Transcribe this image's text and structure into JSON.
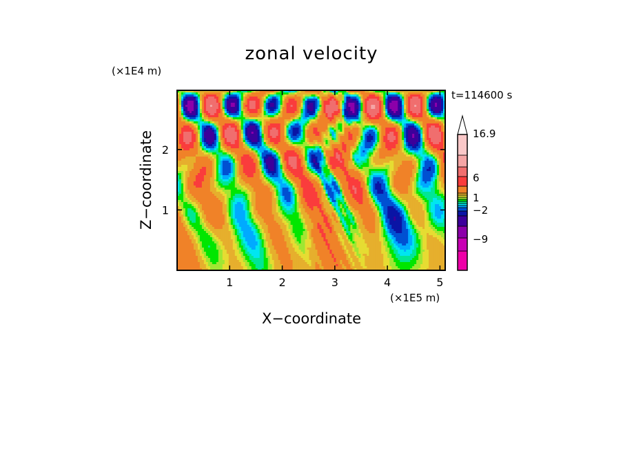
{
  "chart_data": {
    "type": "heatmap",
    "title": "zonal velocity",
    "xlabel": "X−coordinate",
    "ylabel": "Z−coordinate",
    "x_unit": "(×1E5 m)",
    "y_unit": "(×1E4 m)",
    "time_label": "t=114600 s",
    "xlim": [
      0.0,
      5.1
    ],
    "ylim": [
      0.0,
      2.98
    ],
    "x_ticks": [
      1,
      2,
      3,
      4,
      5
    ],
    "y_ticks": [
      1,
      2
    ],
    "colorbar": {
      "extend_max": true,
      "levels_bottom_to_top": [
        -15,
        -12,
        -9,
        -6,
        -4,
        -3,
        -2,
        -1.5,
        -1,
        -0.5,
        0,
        0.5,
        1,
        2,
        4,
        6,
        9,
        12,
        16.9
      ],
      "colors_bottom_to_top": [
        "#ee00a8",
        "#c800b4",
        "#8c00aa",
        "#3c009b",
        "#0a14a5",
        "#0050d2",
        "#00aaff",
        "#00e6f0",
        "#00e696",
        "#00e600",
        "#a0e632",
        "#e6dc32",
        "#e6af2d",
        "#f08228",
        "#fa3c3c",
        "#f06e6e",
        "#f5a5a5",
        "#fac8c8"
      ],
      "labels": [
        {
          "value": 16.9,
          "text": "16.9"
        },
        {
          "value": 6,
          "text": "6"
        },
        {
          "value": 1,
          "text": "1"
        },
        {
          "value": -2,
          "text": "−2"
        },
        {
          "value": -9,
          "text": "−9"
        }
      ]
    },
    "grid": false,
    "note": "Contour field of zonal velocity u(x,z): V-shaped pattern of tilted wave bands emanating from near x≈3 (×1E5 m); positive (orange/red) and negative (blue) alternating streaks in upper half, yellow/green background near the bottom."
  }
}
